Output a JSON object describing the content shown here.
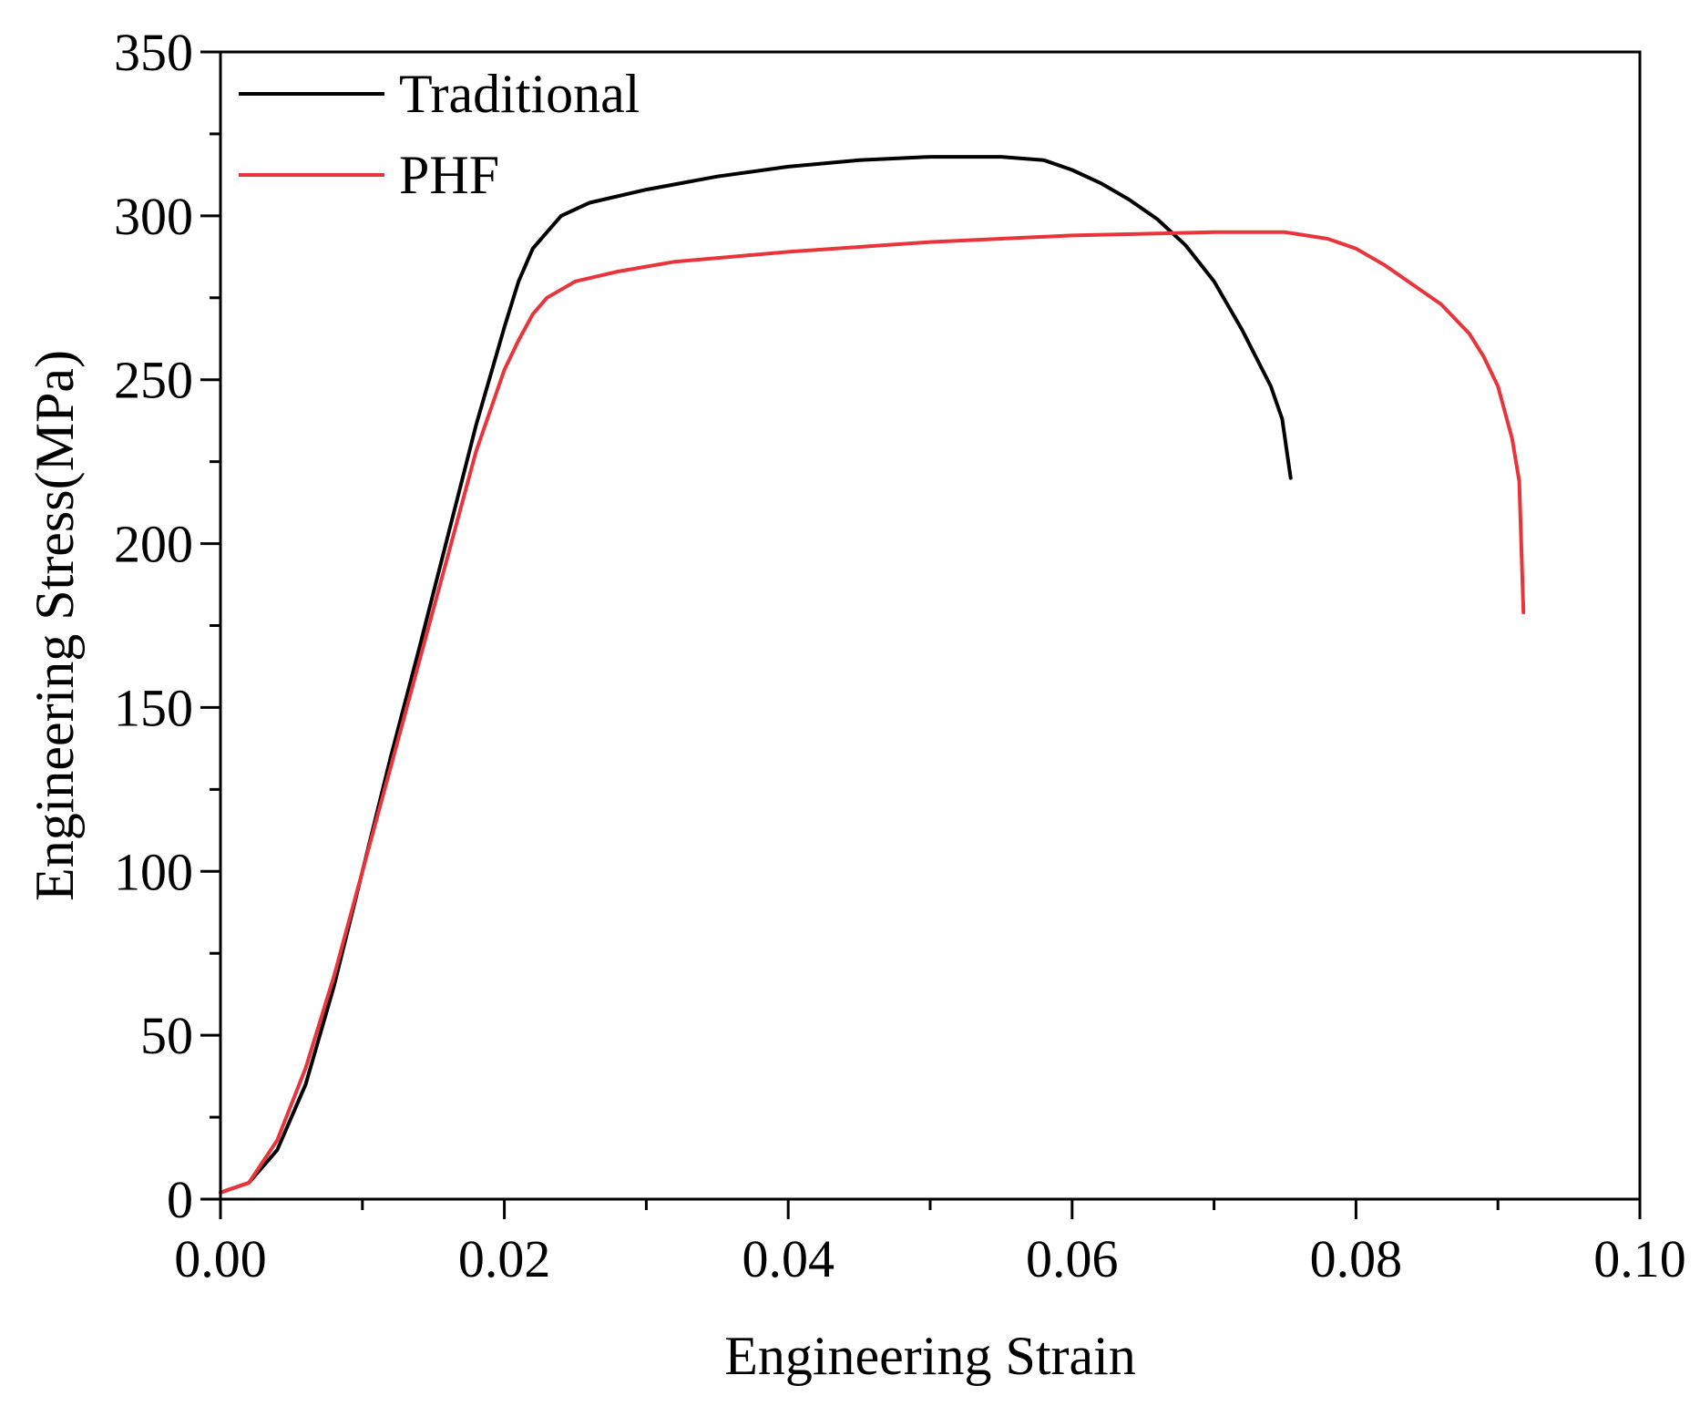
{
  "chart_data": {
    "type": "line",
    "title": "",
    "xlabel": "Engineering Strain",
    "ylabel": "Engineering Stress(MPa)",
    "xlim": [
      0.0,
      0.1
    ],
    "ylim": [
      0,
      350
    ],
    "x_ticks": [
      0.0,
      0.02,
      0.04,
      0.06,
      0.08,
      0.1
    ],
    "x_tick_labels": [
      "0.00",
      "0.02",
      "0.04",
      "0.06",
      "0.08",
      "0.10"
    ],
    "y_ticks": [
      0,
      50,
      100,
      150,
      200,
      250,
      300,
      350
    ],
    "y_tick_labels": [
      "0",
      "50",
      "100",
      "150",
      "200",
      "250",
      "300",
      "350"
    ],
    "grid": false,
    "legend_position": "top-left",
    "series": [
      {
        "name": "Traditional",
        "color": "#000000",
        "x": [
          0.0,
          0.002,
          0.004,
          0.006,
          0.008,
          0.01,
          0.012,
          0.014,
          0.016,
          0.018,
          0.02,
          0.021,
          0.022,
          0.024,
          0.026,
          0.03,
          0.035,
          0.04,
          0.045,
          0.05,
          0.055,
          0.058,
          0.06,
          0.062,
          0.064,
          0.066,
          0.068,
          0.07,
          0.072,
          0.074,
          0.0748,
          0.0752,
          0.0754
        ],
        "y": [
          2,
          5,
          15,
          35,
          65,
          100,
          135,
          168,
          202,
          236,
          266,
          280,
          290,
          300,
          304,
          308,
          312,
          315,
          317,
          318,
          318,
          317,
          314,
          310,
          305,
          299,
          291,
          280,
          265,
          248,
          238,
          226,
          220
        ]
      },
      {
        "name": "PHF",
        "color": "#e8343a",
        "x": [
          0.0,
          0.002,
          0.004,
          0.006,
          0.008,
          0.01,
          0.012,
          0.014,
          0.016,
          0.018,
          0.02,
          0.021,
          0.022,
          0.023,
          0.025,
          0.028,
          0.032,
          0.04,
          0.05,
          0.06,
          0.07,
          0.075,
          0.078,
          0.08,
          0.082,
          0.084,
          0.086,
          0.088,
          0.089,
          0.09,
          0.0905,
          0.091,
          0.0915,
          0.0918
        ],
        "y": [
          2,
          5,
          18,
          40,
          68,
          100,
          132,
          164,
          196,
          228,
          253,
          262,
          270,
          275,
          280,
          283,
          286,
          289,
          292,
          294,
          295,
          295,
          293,
          290,
          285,
          279,
          273,
          264,
          257,
          248,
          240,
          232,
          219,
          179
        ]
      }
    ]
  }
}
